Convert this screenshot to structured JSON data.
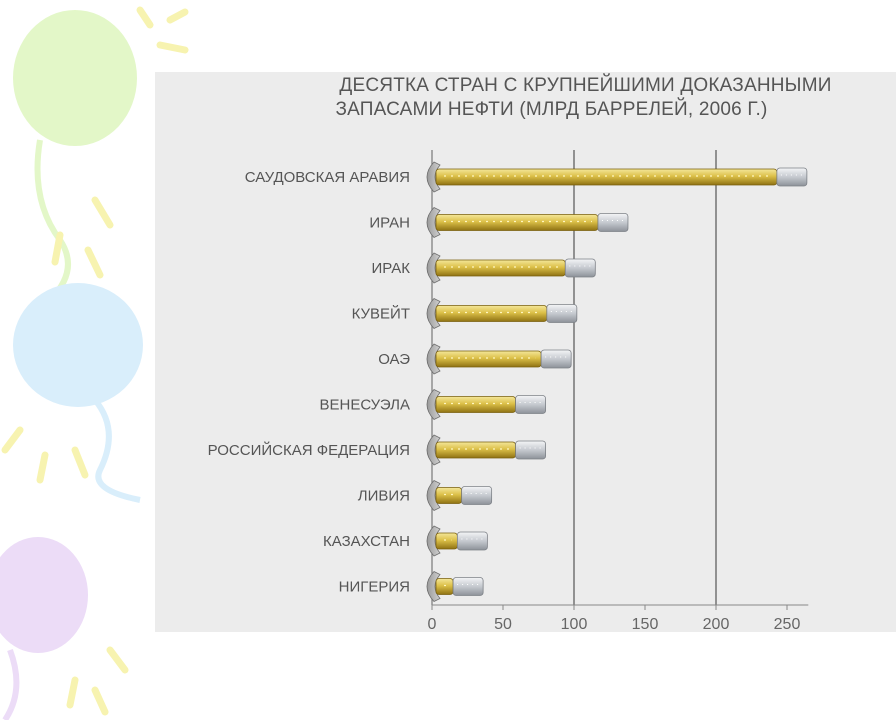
{
  "colors": {
    "gold": "#d4b73a",
    "gold_light": "#f2e38a",
    "gold_dark": "#8c6f10",
    "cap": "#c8ccd2",
    "panel": "#ececec",
    "grid": "#555555"
  },
  "chart_data": {
    "type": "bar",
    "orientation": "horizontal",
    "title_line1": "ДЕСЯТКА СТРАН С КРУПНЕЙШИМИ ДОКАЗАННЫМИ",
    "title_line2": "ЗАПАСАМИ НЕФТИ (МЛРД БАРРЕЛЕЙ, 2006 Г.)",
    "categories": [
      "САУДОВСКАЯ АРАВИЯ",
      "ИРАН",
      "ИРАК",
      "КУВЕЙТ",
      "ОАЭ",
      "ВЕНЕСУЭЛА",
      "РОССИЙСКАЯ ФЕДЕРАЦИЯ",
      "ЛИВИЯ",
      "КАЗАХСТАН",
      "НИГЕРИЯ"
    ],
    "values": [
      264,
      138,
      115,
      102,
      98,
      80,
      80,
      42,
      39,
      36
    ],
    "xlim": [
      0,
      265
    ],
    "xticks": [
      0,
      50,
      100,
      150,
      200,
      250
    ],
    "xtick_labels": [
      "0",
      "50",
      "100",
      "150",
      "200",
      "250"
    ],
    "gridlines": [
      100,
      200
    ],
    "xlabel": "",
    "ylabel": ""
  }
}
